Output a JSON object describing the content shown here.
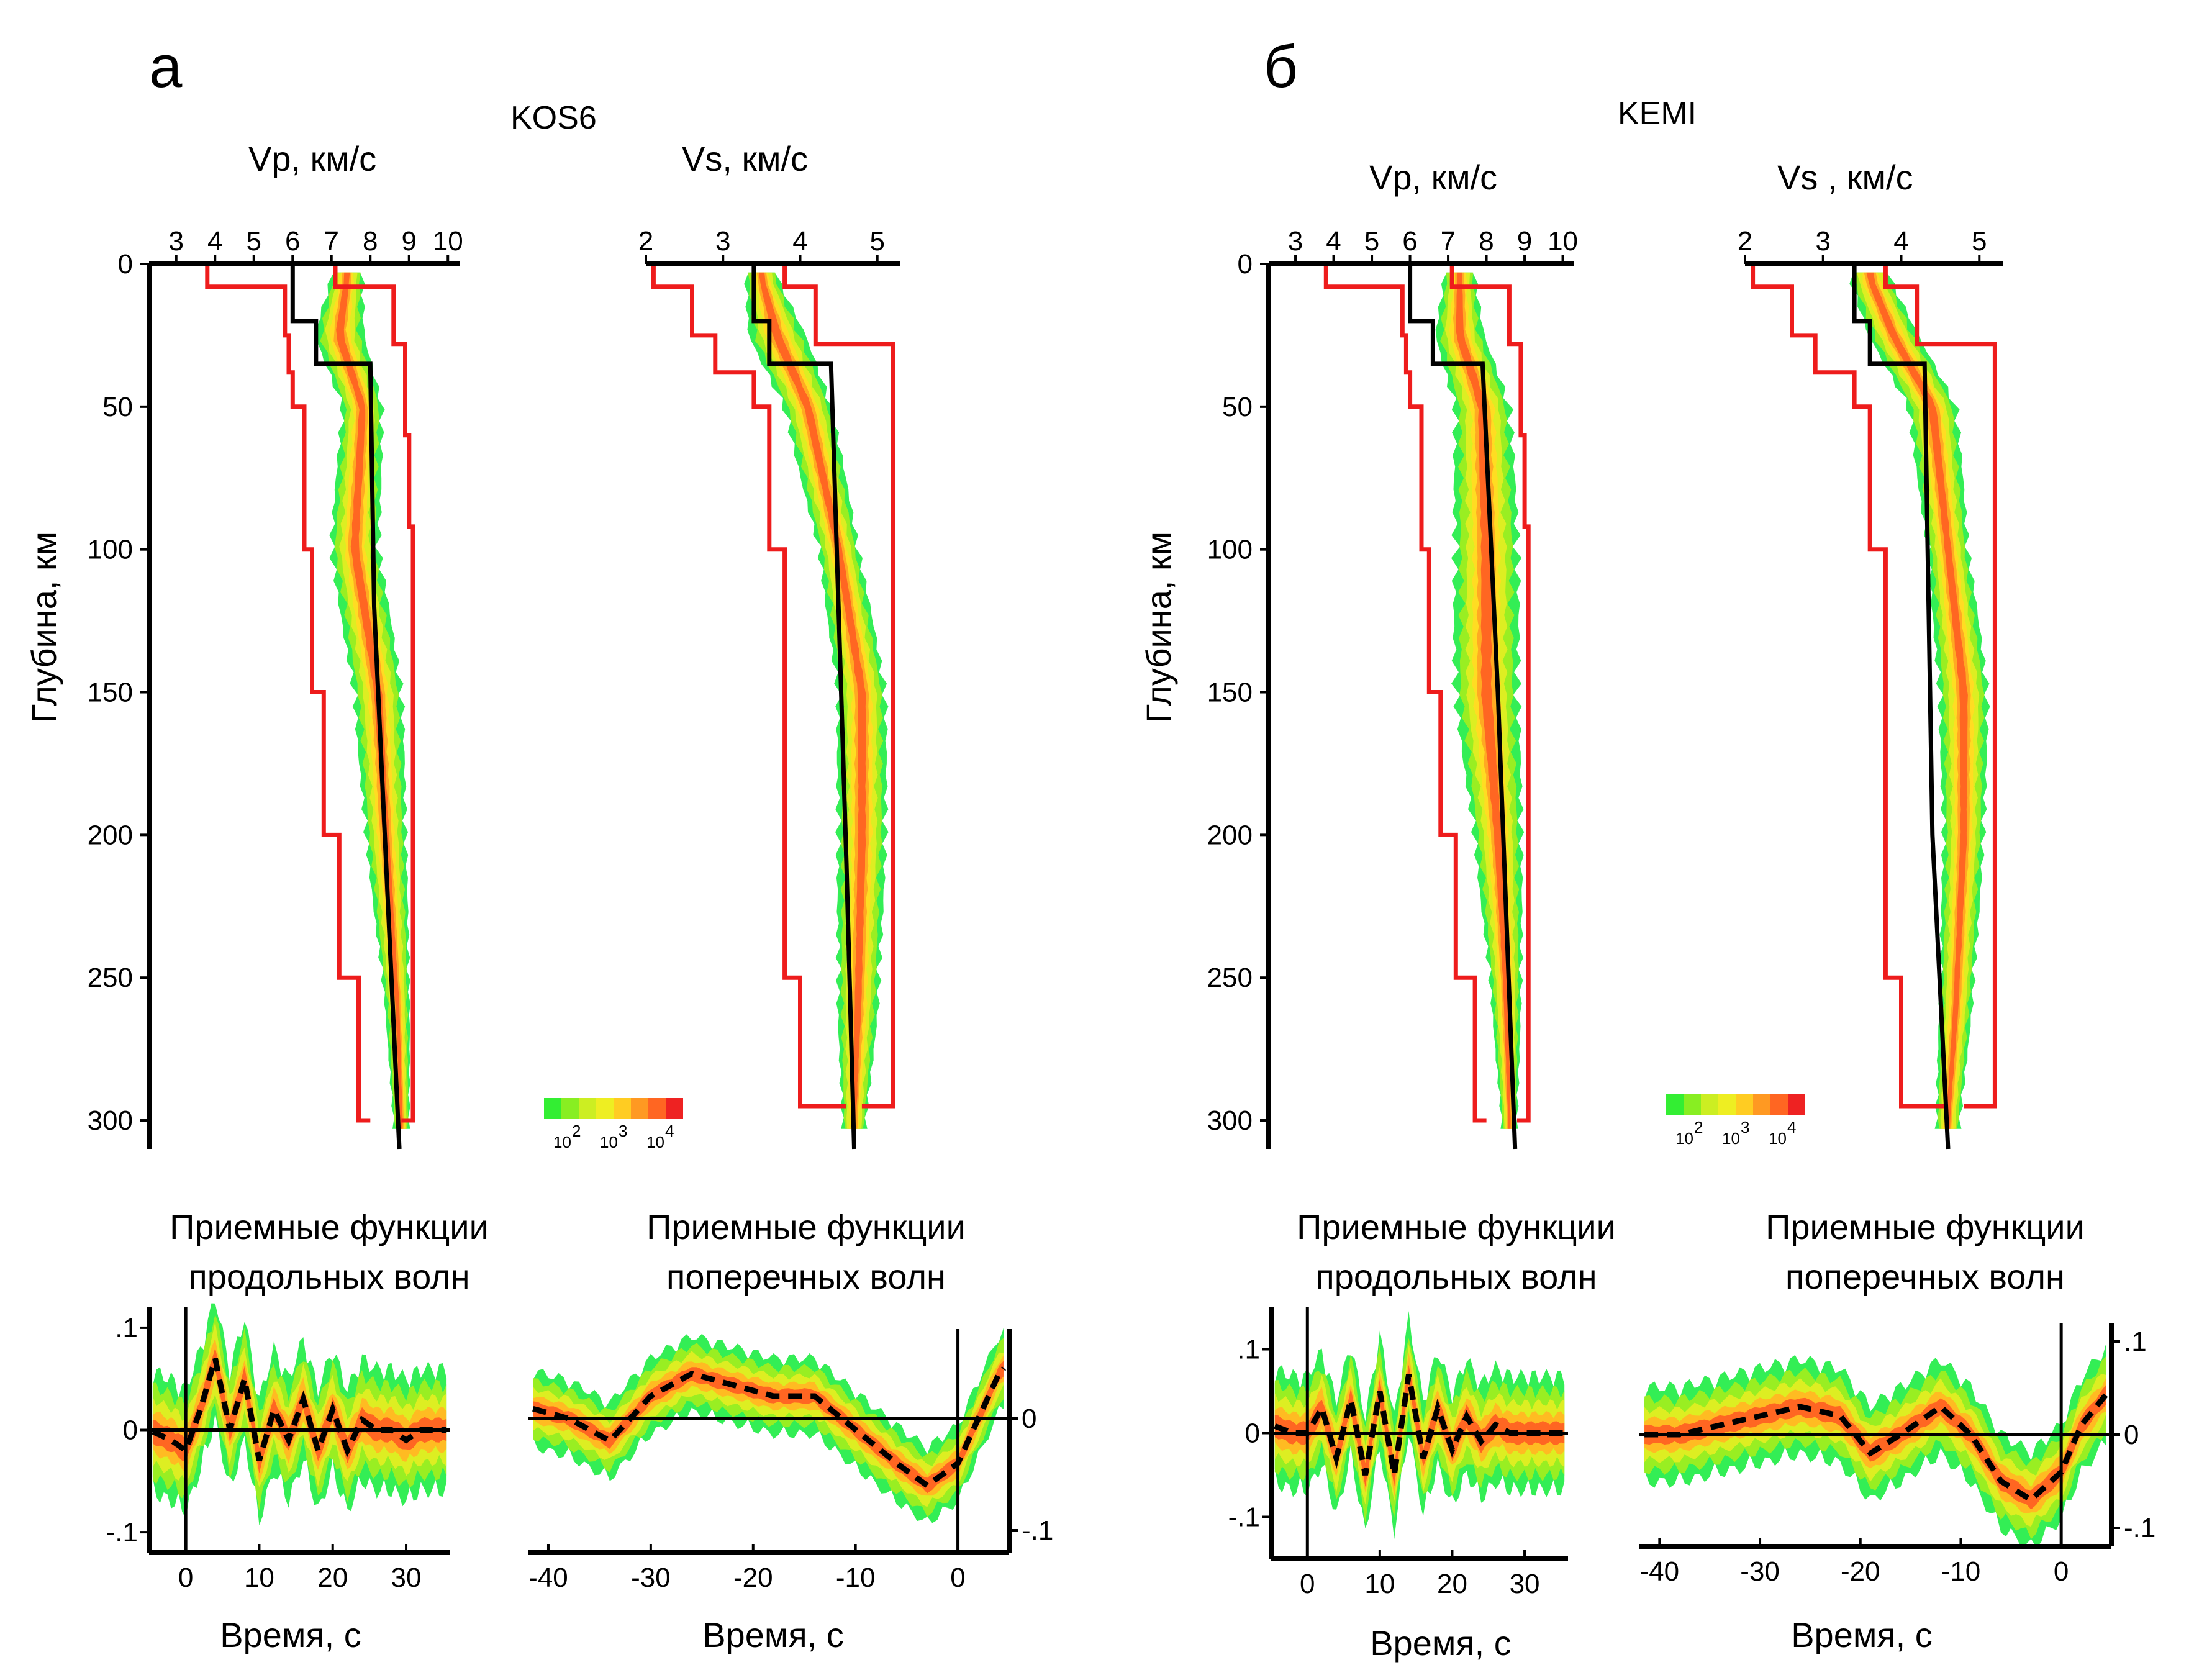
{
  "panels": [
    {
      "letter": "а",
      "station": "KOS6",
      "vp_title": "Vp, км/с",
      "vs_title": "Vs, км/с",
      "depth_label": "Глубина, км",
      "prf_title_1": "Приемные функции",
      "prf_title_2": "продольных волн",
      "srf_title_1": "Приемные функции",
      "srf_title_2": "поперечных волн",
      "time_label": "Время, с"
    },
    {
      "letter": "б",
      "station": "KEMI",
      "vp_title": "Vp, км/с",
      "vs_title": "Vs , км/с",
      "depth_label": "Глубина, км",
      "prf_title_1": "Приемные функции",
      "prf_title_2": "продольных волн",
      "srf_title_1": "Приемные функции",
      "srf_title_2": "поперечных волн",
      "time_label": "Время, с"
    }
  ],
  "legend": {
    "colors": [
      "#33ee33",
      "#88ee22",
      "#ccee22",
      "#eeee22",
      "#ffcc22",
      "#ff9922",
      "#ff6622",
      "#ee2222"
    ],
    "labels": [
      "10",
      "10",
      "10"
    ],
    "exponents": [
      "2",
      "3",
      "4"
    ]
  },
  "colors": {
    "bounds": "#ee1c1c",
    "model": "#000000",
    "density_low": "#33ee44",
    "density_mid": "#eeee33",
    "density_high": "#ff6622",
    "density_peak": "#ee2222"
  },
  "chart_data": [
    {
      "type": "area",
      "panel": "а",
      "name": "Vp",
      "x_axis": {
        "label": "Vp, км/с",
        "ticks": [
          3,
          4,
          5,
          6,
          7,
          8,
          9,
          10
        ],
        "range": [
          2.3,
          10.3
        ]
      },
      "y_axis": {
        "label": "Глубина, км",
        "ticks": [
          0,
          50,
          100,
          150,
          200,
          250,
          300
        ],
        "range": [
          0,
          310
        ],
        "inverted": true
      },
      "min_bound": [
        [
          3.8,
          0
        ],
        [
          3.8,
          8
        ],
        [
          5.8,
          8
        ],
        [
          5.8,
          25
        ],
        [
          5.9,
          25
        ],
        [
          5.9,
          38
        ],
        [
          6.0,
          38
        ],
        [
          6.0,
          50
        ],
        [
          6.3,
          50
        ],
        [
          6.3,
          100
        ],
        [
          6.5,
          100
        ],
        [
          6.5,
          150
        ],
        [
          6.8,
          150
        ],
        [
          6.8,
          200
        ],
        [
          7.2,
          200
        ],
        [
          7.2,
          250
        ],
        [
          7.7,
          250
        ],
        [
          7.7,
          300
        ],
        [
          8.0,
          300
        ]
      ],
      "max_bound": [
        [
          7.1,
          0
        ],
        [
          7.1,
          8
        ],
        [
          8.6,
          8
        ],
        [
          8.6,
          28
        ],
        [
          8.9,
          28
        ],
        [
          8.9,
          60
        ],
        [
          9.0,
          60
        ],
        [
          9.0,
          92
        ],
        [
          9.1,
          92
        ],
        [
          9.1,
          300
        ],
        [
          8.8,
          300
        ]
      ],
      "model": [
        [
          6.0,
          0
        ],
        [
          6.0,
          20
        ],
        [
          6.6,
          20
        ],
        [
          6.6,
          35
        ],
        [
          8.0,
          35
        ],
        [
          8.1,
          120
        ],
        [
          8.75,
          310
        ]
      ],
      "density_center": [
        [
          7.4,
          5
        ],
        [
          7.2,
          25
        ],
        [
          7.8,
          50
        ],
        [
          7.6,
          100
        ],
        [
          8.2,
          150
        ],
        [
          8.4,
          200
        ],
        [
          8.7,
          260
        ],
        [
          8.8,
          300
        ]
      ],
      "density_halfwidth": [
        [
          0.4,
          5
        ],
        [
          0.6,
          25
        ],
        [
          0.5,
          50
        ],
        [
          0.6,
          100
        ],
        [
          0.6,
          150
        ],
        [
          0.5,
          200
        ],
        [
          0.3,
          260
        ],
        [
          0.2,
          300
        ]
      ]
    },
    {
      "type": "area",
      "panel": "а",
      "name": "Vs",
      "x_axis": {
        "label": "Vs, км/с",
        "ticks": [
          2,
          3,
          4,
          5
        ],
        "range": [
          2,
          5.3
        ]
      },
      "y_axis": {
        "label": "Глубина, км",
        "ticks": [
          0,
          50,
          100,
          150,
          200,
          250,
          300
        ],
        "range": [
          0,
          310
        ],
        "inverted": true
      },
      "min_bound": [
        [
          2.1,
          0
        ],
        [
          2.1,
          8
        ],
        [
          2.6,
          8
        ],
        [
          2.6,
          25
        ],
        [
          2.9,
          25
        ],
        [
          2.9,
          38
        ],
        [
          3.4,
          38
        ],
        [
          3.4,
          50
        ],
        [
          3.6,
          50
        ],
        [
          3.6,
          100
        ],
        [
          3.8,
          100
        ],
        [
          3.8,
          250
        ],
        [
          4.0,
          250
        ],
        [
          4.0,
          295
        ],
        [
          4.6,
          295
        ]
      ],
      "max_bound": [
        [
          3.8,
          0
        ],
        [
          3.8,
          8
        ],
        [
          4.2,
          8
        ],
        [
          4.2,
          28
        ],
        [
          5.2,
          28
        ],
        [
          5.2,
          295
        ],
        [
          4.8,
          295
        ]
      ],
      "model": [
        [
          3.4,
          0
        ],
        [
          3.4,
          20
        ],
        [
          3.6,
          20
        ],
        [
          3.6,
          35
        ],
        [
          4.4,
          35
        ],
        [
          4.6,
          210
        ],
        [
          4.7,
          310
        ]
      ],
      "density_center": [
        [
          3.5,
          5
        ],
        [
          3.7,
          25
        ],
        [
          4.1,
          50
        ],
        [
          4.5,
          100
        ],
        [
          4.8,
          150
        ],
        [
          4.8,
          200
        ],
        [
          4.75,
          260
        ],
        [
          4.7,
          300
        ]
      ],
      "density_halfwidth": [
        [
          0.2,
          5
        ],
        [
          0.35,
          25
        ],
        [
          0.3,
          50
        ],
        [
          0.25,
          100
        ],
        [
          0.3,
          150
        ],
        [
          0.3,
          200
        ],
        [
          0.25,
          260
        ],
        [
          0.15,
          300
        ]
      ]
    },
    {
      "type": "line",
      "panel": "а",
      "name": "Приемные функции продольных волн",
      "x_axis": {
        "label": "Время, с",
        "ticks": [
          0,
          10,
          20,
          30
        ],
        "range": [
          -5,
          36
        ]
      },
      "y_axis": {
        "ticks": [
          -0.1,
          0,
          0.1
        ],
        "range": [
          -0.12,
          0.12
        ]
      },
      "mean": [
        [
          -5,
          0.0
        ],
        [
          -2,
          -0.01
        ],
        [
          0,
          -0.02
        ],
        [
          2,
          0.02
        ],
        [
          4,
          0.07
        ],
        [
          6,
          0.0
        ],
        [
          8,
          0.05
        ],
        [
          10,
          -0.03
        ],
        [
          12,
          0.02
        ],
        [
          14,
          -0.01
        ],
        [
          16,
          0.03
        ],
        [
          18,
          -0.02
        ],
        [
          20,
          0.02
        ],
        [
          22,
          -0.02
        ],
        [
          24,
          0.01
        ],
        [
          26,
          0.0
        ],
        [
          28,
          0.0
        ],
        [
          30,
          -0.01
        ],
        [
          32,
          0.0
        ],
        [
          35,
          0.0
        ]
      ],
      "spread": 0.035
    },
    {
      "type": "line",
      "panel": "а",
      "name": "Приемные функции поперечных волн",
      "x_axis": {
        "label": "Время, с",
        "ticks": [
          -40,
          -30,
          -20,
          -10,
          0
        ],
        "range": [
          -42,
          5
        ]
      },
      "y_axis": {
        "ticks": [
          -0.1,
          0
        ],
        "range": [
          -0.12,
          0.08
        ]
      },
      "mean": [
        [
          -42,
          0.01
        ],
        [
          -38,
          0.0
        ],
        [
          -34,
          -0.02
        ],
        [
          -30,
          0.02
        ],
        [
          -26,
          0.04
        ],
        [
          -22,
          0.03
        ],
        [
          -18,
          0.02
        ],
        [
          -14,
          0.02
        ],
        [
          -10,
          -0.01
        ],
        [
          -6,
          -0.04
        ],
        [
          -3,
          -0.06
        ],
        [
          0,
          -0.04
        ],
        [
          2,
          0.0
        ],
        [
          4,
          0.04
        ],
        [
          5,
          0.05
        ]
      ],
      "spread": 0.02
    },
    {
      "type": "area",
      "panel": "б",
      "name": "Vp",
      "x_axis": {
        "label": "Vp, км/с",
        "ticks": [
          3,
          4,
          5,
          6,
          7,
          8,
          9,
          10
        ],
        "range": [
          2.3,
          10.3
        ]
      },
      "y_axis": {
        "label": "Глубина, км",
        "ticks": [
          0,
          50,
          100,
          150,
          200,
          250,
          300
        ],
        "range": [
          0,
          310
        ],
        "inverted": true
      },
      "min_bound": [
        [
          3.8,
          0
        ],
        [
          3.8,
          8
        ],
        [
          5.8,
          8
        ],
        [
          5.8,
          25
        ],
        [
          5.9,
          25
        ],
        [
          5.9,
          38
        ],
        [
          6.0,
          38
        ],
        [
          6.0,
          50
        ],
        [
          6.3,
          50
        ],
        [
          6.3,
          100
        ],
        [
          6.5,
          100
        ],
        [
          6.5,
          150
        ],
        [
          6.8,
          150
        ],
        [
          6.8,
          200
        ],
        [
          7.2,
          200
        ],
        [
          7.2,
          250
        ],
        [
          7.7,
          250
        ],
        [
          7.7,
          300
        ],
        [
          8.0,
          300
        ]
      ],
      "max_bound": [
        [
          7.1,
          0
        ],
        [
          7.1,
          8
        ],
        [
          8.6,
          8
        ],
        [
          8.6,
          28
        ],
        [
          8.9,
          28
        ],
        [
          8.9,
          60
        ],
        [
          9.0,
          60
        ],
        [
          9.0,
          92
        ],
        [
          9.1,
          92
        ],
        [
          9.1,
          300
        ],
        [
          8.8,
          300
        ]
      ],
      "model": [
        [
          6.0,
          0
        ],
        [
          6.0,
          20
        ],
        [
          6.6,
          20
        ],
        [
          6.6,
          35
        ],
        [
          7.9,
          35
        ],
        [
          8.3,
          150
        ],
        [
          8.75,
          310
        ]
      ],
      "density_center": [
        [
          7.3,
          5
        ],
        [
          7.3,
          25
        ],
        [
          7.9,
          50
        ],
        [
          8.0,
          100
        ],
        [
          8.0,
          150
        ],
        [
          8.3,
          200
        ],
        [
          8.5,
          250
        ],
        [
          8.6,
          300
        ]
      ],
      "density_halfwidth": [
        [
          0.4,
          5
        ],
        [
          0.6,
          25
        ],
        [
          0.7,
          50
        ],
        [
          0.8,
          100
        ],
        [
          0.8,
          150
        ],
        [
          0.6,
          200
        ],
        [
          0.4,
          250
        ],
        [
          0.2,
          300
        ]
      ]
    },
    {
      "type": "area",
      "panel": "б",
      "name": "Vs",
      "x_axis": {
        "label": "Vs , км/с",
        "ticks": [
          2,
          3,
          4,
          5
        ],
        "range": [
          2,
          5.3
        ]
      },
      "y_axis": {
        "label": "Глубина, км",
        "ticks": [
          0,
          50,
          100,
          150,
          200,
          250,
          300
        ],
        "range": [
          0,
          310
        ],
        "inverted": true
      },
      "min_bound": [
        [
          2.1,
          0
        ],
        [
          2.1,
          8
        ],
        [
          2.6,
          8
        ],
        [
          2.6,
          25
        ],
        [
          2.9,
          25
        ],
        [
          2.9,
          38
        ],
        [
          3.4,
          38
        ],
        [
          3.4,
          50
        ],
        [
          3.6,
          50
        ],
        [
          3.6,
          100
        ],
        [
          3.8,
          100
        ],
        [
          3.8,
          250
        ],
        [
          4.0,
          250
        ],
        [
          4.0,
          295
        ],
        [
          4.6,
          295
        ]
      ],
      "max_bound": [
        [
          3.8,
          0
        ],
        [
          3.8,
          8
        ],
        [
          4.2,
          8
        ],
        [
          4.2,
          28
        ],
        [
          5.2,
          28
        ],
        [
          5.2,
          295
        ],
        [
          4.8,
          295
        ]
      ],
      "model": [
        [
          3.4,
          0
        ],
        [
          3.4,
          20
        ],
        [
          3.6,
          20
        ],
        [
          3.6,
          35
        ],
        [
          4.3,
          35
        ],
        [
          4.4,
          200
        ],
        [
          4.6,
          310
        ]
      ],
      "density_center": [
        [
          3.6,
          5
        ],
        [
          3.9,
          25
        ],
        [
          4.4,
          50
        ],
        [
          4.6,
          100
        ],
        [
          4.8,
          150
        ],
        [
          4.8,
          200
        ],
        [
          4.7,
          260
        ],
        [
          4.6,
          300
        ]
      ],
      "density_halfwidth": [
        [
          0.25,
          5
        ],
        [
          0.3,
          25
        ],
        [
          0.3,
          50
        ],
        [
          0.25,
          100
        ],
        [
          0.3,
          150
        ],
        [
          0.25,
          200
        ],
        [
          0.2,
          260
        ],
        [
          0.15,
          300
        ]
      ]
    },
    {
      "type": "line",
      "panel": "б",
      "name": "Приемные функции продольных волн",
      "x_axis": {
        "label": "Время, с",
        "ticks": [
          0,
          10,
          20,
          30
        ],
        "range": [
          -5,
          36
        ]
      },
      "y_axis": {
        "ticks": [
          -0.1,
          0,
          0.1
        ],
        "range": [
          -0.15,
          0.15
        ]
      },
      "mean": [
        [
          -5,
          0.01
        ],
        [
          -2,
          0.0
        ],
        [
          0,
          0.0
        ],
        [
          2,
          0.03
        ],
        [
          4,
          -0.03
        ],
        [
          6,
          0.04
        ],
        [
          8,
          -0.05
        ],
        [
          10,
          0.05
        ],
        [
          12,
          -0.05
        ],
        [
          14,
          0.07
        ],
        [
          16,
          -0.03
        ],
        [
          18,
          0.03
        ],
        [
          20,
          -0.02
        ],
        [
          22,
          0.02
        ],
        [
          24,
          -0.01
        ],
        [
          26,
          0.01
        ],
        [
          28,
          0.0
        ],
        [
          30,
          0.0
        ],
        [
          35,
          0.0
        ]
      ],
      "spread": 0.04
    },
    {
      "type": "line",
      "panel": "б",
      "name": "Приемные функции поперечных волн",
      "x_axis": {
        "label": "Время, с",
        "ticks": [
          -40,
          -30,
          -20,
          -10,
          0
        ],
        "range": [
          -42,
          5
        ]
      },
      "y_axis": {
        "ticks": [
          -0.1,
          0,
          0.1
        ],
        "range": [
          -0.12,
          0.12
        ]
      },
      "mean": [
        [
          -42,
          0.0
        ],
        [
          -38,
          0.0
        ],
        [
          -34,
          0.01
        ],
        [
          -30,
          0.02
        ],
        [
          -26,
          0.03
        ],
        [
          -22,
          0.02
        ],
        [
          -19,
          -0.02
        ],
        [
          -16,
          0.0
        ],
        [
          -12,
          0.03
        ],
        [
          -9,
          0.0
        ],
        [
          -6,
          -0.05
        ],
        [
          -3,
          -0.07
        ],
        [
          0,
          -0.04
        ],
        [
          2,
          0.01
        ],
        [
          5,
          0.05
        ]
      ],
      "spread": 0.03
    }
  ]
}
